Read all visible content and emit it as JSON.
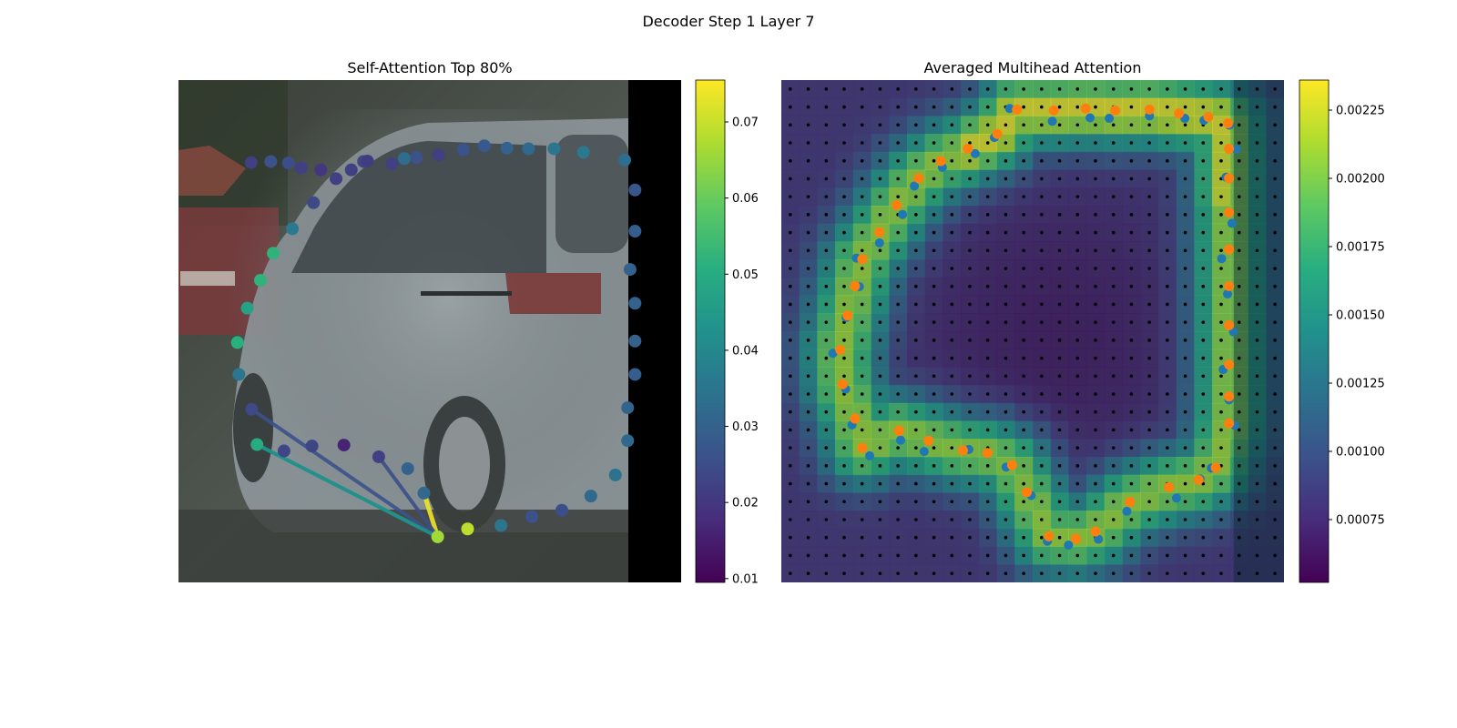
{
  "figure": {
    "title": "Decoder Step 1 Layer 7"
  },
  "chart_data": [
    {
      "type": "scatter",
      "title": "Self-Attention Top 80%",
      "background": "photo of a silver minivan on a street (camera image)",
      "colormap": "viridis",
      "colorbar": {
        "range": [
          0.0095,
          0.0755
        ],
        "ticks": [
          "0.01",
          "0.02",
          "0.03",
          "0.04",
          "0.05",
          "0.06",
          "0.07"
        ],
        "tick_values": [
          0.01,
          0.02,
          0.03,
          0.04,
          0.05,
          0.06,
          0.07
        ]
      },
      "image_size": [
        1024,
        1024
      ],
      "points": [
        {
          "x": 148,
          "y": 168,
          "v": 0.022
        },
        {
          "x": 188,
          "y": 166,
          "v": 0.026
        },
        {
          "x": 224,
          "y": 169,
          "v": 0.025
        },
        {
          "x": 250,
          "y": 179,
          "v": 0.022
        },
        {
          "x": 290,
          "y": 183,
          "v": 0.02
        },
        {
          "x": 352,
          "y": 183,
          "v": 0.022
        },
        {
          "x": 435,
          "y": 171,
          "v": 0.022
        },
        {
          "x": 460,
          "y": 160,
          "v": 0.033
        },
        {
          "x": 485,
          "y": 158,
          "v": 0.026
        },
        {
          "x": 530,
          "y": 153,
          "v": 0.022
        },
        {
          "x": 580,
          "y": 142,
          "v": 0.026
        },
        {
          "x": 623,
          "y": 134,
          "v": 0.028
        },
        {
          "x": 669,
          "y": 139,
          "v": 0.03
        },
        {
          "x": 713,
          "y": 140,
          "v": 0.032
        },
        {
          "x": 765,
          "y": 140,
          "v": 0.035
        },
        {
          "x": 825,
          "y": 147,
          "v": 0.036
        },
        {
          "x": 909,
          "y": 163,
          "v": 0.033
        },
        {
          "x": 930,
          "y": 224,
          "v": 0.027
        },
        {
          "x": 930,
          "y": 308,
          "v": 0.029
        },
        {
          "x": 920,
          "y": 386,
          "v": 0.03
        },
        {
          "x": 930,
          "y": 455,
          "v": 0.03
        },
        {
          "x": 930,
          "y": 532,
          "v": 0.03
        },
        {
          "x": 930,
          "y": 600,
          "v": 0.029
        },
        {
          "x": 915,
          "y": 668,
          "v": 0.031
        },
        {
          "x": 915,
          "y": 735,
          "v": 0.032
        },
        {
          "x": 890,
          "y": 805,
          "v": 0.034
        },
        {
          "x": 840,
          "y": 848,
          "v": 0.032
        },
        {
          "x": 781,
          "y": 877,
          "v": 0.025
        },
        {
          "x": 720,
          "y": 890,
          "v": 0.026
        },
        {
          "x": 657,
          "y": 908,
          "v": 0.035
        },
        {
          "x": 589,
          "y": 915,
          "v": 0.069
        },
        {
          "x": 528,
          "y": 931,
          "v": 0.066
        },
        {
          "x": 500,
          "y": 842,
          "v": 0.032
        },
        {
          "x": 467,
          "y": 792,
          "v": 0.03
        },
        {
          "x": 408,
          "y": 768,
          "v": 0.022
        },
        {
          "x": 337,
          "y": 744,
          "v": 0.016
        },
        {
          "x": 272,
          "y": 746,
          "v": 0.023
        },
        {
          "x": 215,
          "y": 756,
          "v": 0.023
        },
        {
          "x": 160,
          "y": 743,
          "v": 0.05
        },
        {
          "x": 149,
          "y": 671,
          "v": 0.024
        },
        {
          "x": 123,
          "y": 600,
          "v": 0.035
        },
        {
          "x": 120,
          "y": 535,
          "v": 0.051
        },
        {
          "x": 140,
          "y": 465,
          "v": 0.047
        },
        {
          "x": 167,
          "y": 408,
          "v": 0.052
        },
        {
          "x": 193,
          "y": 353,
          "v": 0.052
        },
        {
          "x": 232,
          "y": 303,
          "v": 0.036
        },
        {
          "x": 275,
          "y": 250,
          "v": 0.024
        },
        {
          "x": 321,
          "y": 201,
          "v": 0.022
        },
        {
          "x": 377,
          "y": 166,
          "v": 0.023
        },
        {
          "x": 385,
          "y": 165,
          "v": 0.021
        }
      ],
      "links": [
        {
          "from": [
            160,
            743
          ],
          "to": [
            528,
            931
          ],
          "v": 0.048
        },
        {
          "from": [
            149,
            671
          ],
          "to": [
            528,
            931
          ],
          "v": 0.026
        },
        {
          "from": [
            160,
            743
          ],
          "to": [
            528,
            931
          ],
          "v": 0.042
        },
        {
          "from": [
            500,
            842
          ],
          "to": [
            528,
            931
          ],
          "v": 0.074
        },
        {
          "from": [
            408,
            768
          ],
          "to": [
            528,
            931
          ],
          "v": 0.025
        }
      ]
    },
    {
      "type": "heatmap",
      "title": "Averaged Multihead Attention",
      "background": "same camera image with attention heatmap overlay",
      "colormap": "viridis",
      "colorbar": {
        "range": [
          0.00052,
          0.00236
        ],
        "ticks": [
          "0.00075",
          "0.00100",
          "0.00125",
          "0.00150",
          "0.00175",
          "0.00200",
          "0.00225"
        ],
        "tick_values": [
          0.00075,
          0.001,
          0.00125,
          0.0015,
          0.00175,
          0.002,
          0.00225
        ]
      },
      "grid_points": {
        "rows": 28,
        "cols": 28,
        "color": "#000000"
      },
      "series": [
        {
          "name": "reference points",
          "color": "#1f77b4"
        },
        {
          "name": "predicted points",
          "color": "#ff7f0e"
        }
      ],
      "ring": [
        [
          480,
          60
        ],
        [
          555,
          62
        ],
        [
          620,
          58
        ],
        [
          680,
          62
        ],
        [
          750,
          60
        ],
        [
          810,
          68
        ],
        [
          870,
          75
        ],
        [
          910,
          88
        ],
        [
          912,
          140
        ],
        [
          912,
          200
        ],
        [
          912,
          270
        ],
        [
          912,
          345
        ],
        [
          912,
          420
        ],
        [
          912,
          500
        ],
        [
          912,
          580
        ],
        [
          912,
          645
        ],
        [
          912,
          700
        ],
        [
          885,
          790
        ],
        [
          850,
          815
        ],
        [
          790,
          830
        ],
        [
          710,
          860
        ],
        [
          640,
          920
        ],
        [
          600,
          935
        ],
        [
          545,
          930
        ],
        [
          500,
          840
        ],
        [
          470,
          785
        ],
        [
          420,
          760
        ],
        [
          370,
          755
        ],
        [
          300,
          735
        ],
        [
          240,
          715
        ],
        [
          165,
          750
        ],
        [
          150,
          690
        ],
        [
          125,
          620
        ],
        [
          120,
          550
        ],
        [
          135,
          480
        ],
        [
          150,
          420
        ],
        [
          165,
          365
        ],
        [
          200,
          310
        ],
        [
          235,
          255
        ],
        [
          280,
          200
        ],
        [
          325,
          165
        ],
        [
          380,
          140
        ],
        [
          440,
          110
        ]
      ]
    }
  ]
}
